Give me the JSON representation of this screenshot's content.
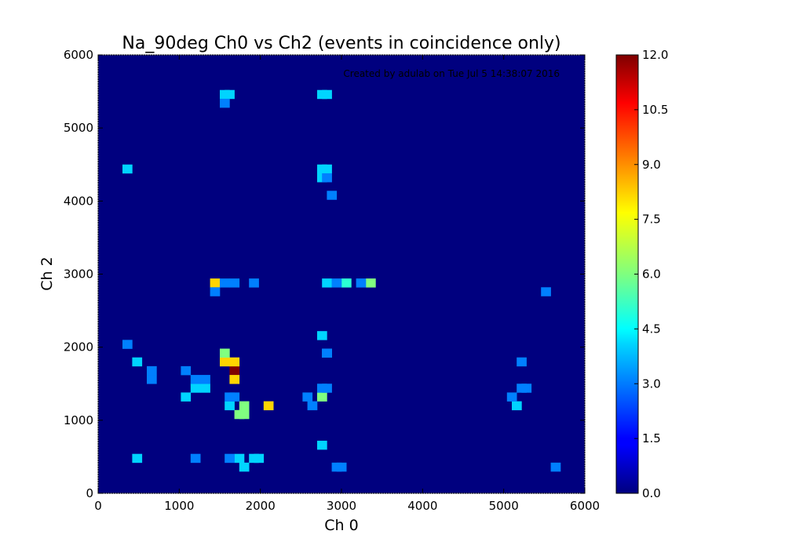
{
  "chart_data": {
    "type": "heatmap",
    "title": "Na_90deg Ch0 vs Ch2 (events in coincidence only)",
    "annotation": "Created by adulab on Tue Jul  5 14:38:07 2016",
    "xlabel": "Ch 0",
    "ylabel": "Ch 2",
    "xlim": [
      0,
      6000
    ],
    "ylim": [
      0,
      6000
    ],
    "bin_width": 120,
    "x_ticks": [
      "0",
      "1000",
      "2000",
      "3000",
      "4000",
      "5000",
      "6000"
    ],
    "y_ticks": [
      "0",
      "1000",
      "2000",
      "3000",
      "4000",
      "5000",
      "6000"
    ],
    "colorbar": {
      "range": [
        0,
        12
      ],
      "colormap": "jet",
      "ticks": [
        "0.0",
        "1.5",
        "3.0",
        "4.5",
        "6.0",
        "7.5",
        "9.0",
        "10.5",
        "12.0"
      ]
    },
    "cells": [
      [
        1620,
        1620,
        12
      ],
      [
        1500,
        1740,
        8
      ],
      [
        1620,
        1740,
        8
      ],
      [
        1620,
        1500,
        8
      ],
      [
        1380,
        2820,
        8
      ],
      [
        2040,
        1140,
        8
      ],
      [
        1500,
        1860,
        6
      ],
      [
        1680,
        1020,
        6
      ],
      [
        1740,
        1020,
        6
      ],
      [
        1740,
        1140,
        6
      ],
      [
        3300,
        2820,
        6
      ],
      [
        2700,
        1260,
        6
      ],
      [
        3000,
        2820,
        5
      ],
      [
        1020,
        1260,
        4
      ],
      [
        1140,
        1380,
        4
      ],
      [
        1260,
        1380,
        4
      ],
      [
        1560,
        1140,
        4
      ],
      [
        1680,
        420,
        4
      ],
      [
        1860,
        420,
        4
      ],
      [
        1920,
        420,
        4
      ],
      [
        1740,
        300,
        4
      ],
      [
        2700,
        600,
        4
      ],
      [
        2760,
        1860,
        4
      ],
      [
        2700,
        2100,
        4
      ],
      [
        2760,
        2820,
        4
      ],
      [
        2700,
        4260,
        4
      ],
      [
        2700,
        4380,
        4
      ],
      [
        2760,
        4380,
        4
      ],
      [
        2700,
        5400,
        4
      ],
      [
        2760,
        5400,
        4
      ],
      [
        1500,
        5400,
        4
      ],
      [
        1560,
        5400,
        4
      ],
      [
        300,
        4380,
        4
      ],
      [
        420,
        1740,
        4
      ],
      [
        420,
        420,
        4
      ],
      [
        5100,
        1140,
        4
      ],
      [
        1020,
        1620,
        3
      ],
      [
        1260,
        1500,
        3
      ],
      [
        1140,
        1500,
        3
      ],
      [
        1560,
        1260,
        3
      ],
      [
        1620,
        1260,
        3
      ],
      [
        1380,
        2700,
        3
      ],
      [
        1500,
        2820,
        3
      ],
      [
        1620,
        2820,
        3
      ],
      [
        1860,
        2820,
        3
      ],
      [
        2700,
        1380,
        3
      ],
      [
        2760,
        1380,
        3
      ],
      [
        2760,
        1860,
        3
      ],
      [
        2880,
        300,
        3
      ],
      [
        2940,
        300,
        3
      ],
      [
        2760,
        4260,
        3
      ],
      [
        2820,
        4020,
        3
      ],
      [
        1500,
        5280,
        3
      ],
      [
        600,
        1620,
        3
      ],
      [
        600,
        1500,
        3
      ],
      [
        300,
        1980,
        3
      ],
      [
        5160,
        1380,
        3
      ],
      [
        5220,
        1380,
        3
      ],
      [
        5460,
        2700,
        3
      ],
      [
        5580,
        300,
        3
      ],
      [
        1140,
        420,
        3
      ],
      [
        1560,
        420,
        3
      ],
      [
        5160,
        1740,
        3
      ],
      [
        5040,
        1260,
        3
      ],
      [
        2520,
        1260,
        3
      ],
      [
        2580,
        1140,
        3
      ],
      [
        2880,
        2820,
        3
      ],
      [
        3180,
        2820,
        3
      ]
    ]
  }
}
